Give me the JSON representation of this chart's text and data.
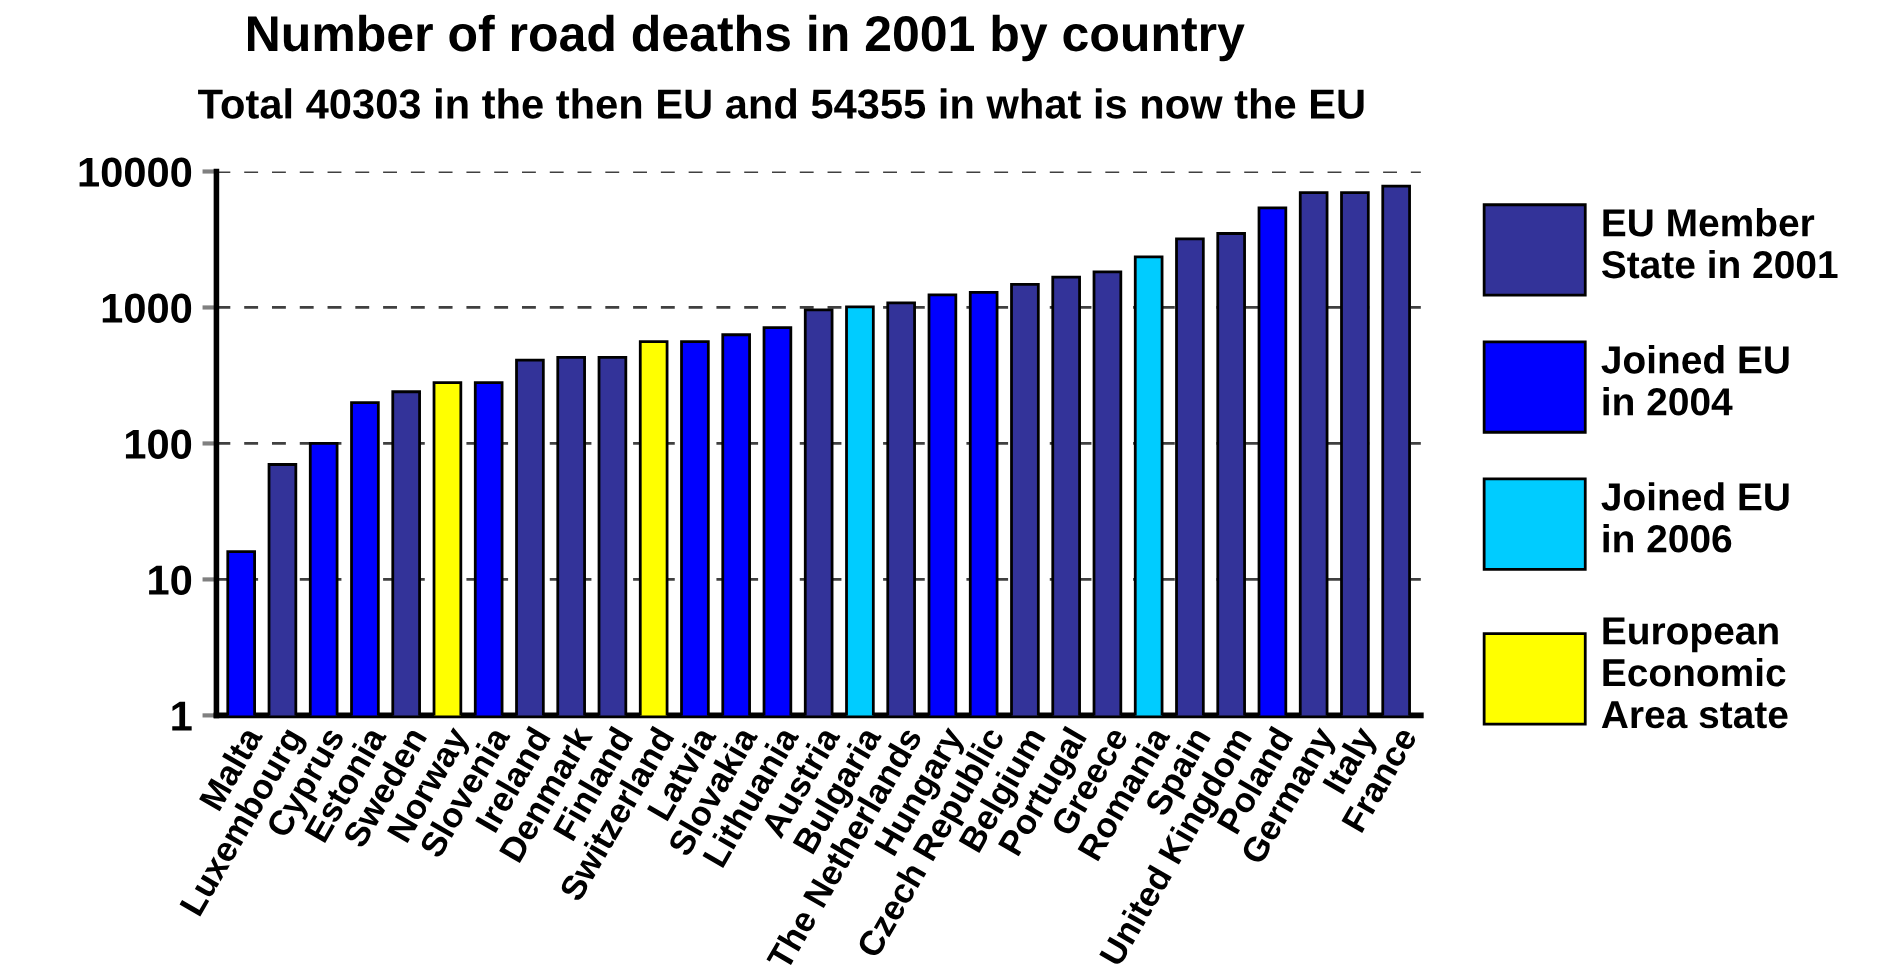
{
  "chart_data": {
    "type": "bar",
    "title": "Number of road deaths in 2001 by country",
    "subtitle": "Total 40303 in the then EU and 54355 in what is now the EU",
    "categories": [
      "Malta",
      "Luxembourg",
      "Cyprus",
      "Estonia",
      "Sweden",
      "Norway",
      "Slovenia",
      "Ireland",
      "Denmark",
      "Finland",
      "Switzerland",
      "Latvia",
      "Slovakia",
      "Lithuania",
      "Austria",
      "Bulgaria",
      "The Netherlands",
      "Hungary",
      "Czech Republic",
      "Belgium",
      "Portugal",
      "Greece",
      "Romania",
      "Spain",
      "United Kingdom",
      "Poland",
      "Germany",
      "Italy",
      "France"
    ],
    "series": [
      {
        "name": "EU Member\nState in 2001",
        "color": "#333399",
        "values": [
          null,
          70,
          null,
          null,
          240,
          null,
          null,
          410,
          430,
          430,
          null,
          null,
          null,
          null,
          960,
          null,
          1080,
          null,
          null,
          1480,
          1670,
          1830,
          null,
          3200,
          3500,
          null,
          7000,
          7000,
          7800
        ]
      },
      {
        "name": "Joined EU\nin 2004",
        "color": "#0000ff",
        "values": [
          16,
          null,
          100,
          200,
          null,
          null,
          280,
          null,
          null,
          null,
          null,
          560,
          630,
          710,
          null,
          null,
          null,
          1240,
          1290,
          null,
          null,
          null,
          null,
          null,
          null,
          5400,
          null,
          null,
          null
        ]
      },
      {
        "name": "Joined EU\nin 2006",
        "color": "#00ccff",
        "values": [
          null,
          null,
          null,
          null,
          null,
          null,
          null,
          null,
          null,
          null,
          null,
          null,
          null,
          null,
          null,
          1010,
          null,
          null,
          null,
          null,
          null,
          null,
          2360,
          null,
          null,
          null,
          null,
          null,
          null
        ]
      },
      {
        "name": "European\nEconomic\nArea state",
        "color": "#ffff00",
        "values": [
          null,
          null,
          null,
          null,
          null,
          280,
          null,
          null,
          null,
          null,
          560,
          null,
          null,
          null,
          null,
          null,
          null,
          null,
          null,
          null,
          null,
          null,
          null,
          null,
          null,
          null,
          null,
          null,
          null
        ]
      }
    ],
    "log": true,
    "ylim": [
      1,
      10000
    ],
    "yticks": [
      1,
      10,
      100,
      1000,
      10000
    ],
    "grid": "y",
    "legend": "right"
  }
}
